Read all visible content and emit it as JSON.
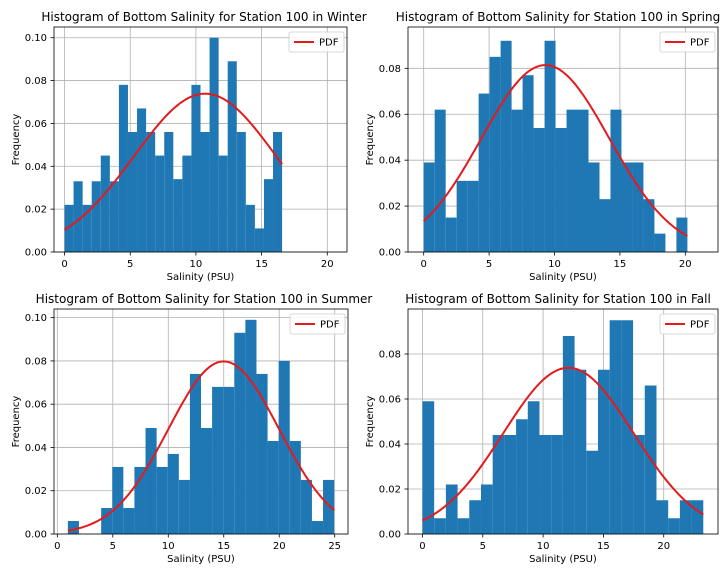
{
  "chart_data": [
    {
      "type": "bar",
      "title": "Histogram of Bottom Salinity for Station 100 in Winter",
      "xlabel": "Salinity (PSU)",
      "ylabel": "Frequency",
      "xlim": [
        -0.8,
        21.5
      ],
      "ylim": [
        0,
        0.105
      ],
      "xticks": [
        0,
        5,
        10,
        15,
        20
      ],
      "yticks": [
        0.0,
        0.02,
        0.04,
        0.06,
        0.08,
        0.1
      ],
      "bin_start": 0.0,
      "bin_width": 0.69,
      "values": [
        0.022,
        0.033,
        0.022,
        0.033,
        0.045,
        0.033,
        0.078,
        0.056,
        0.067,
        0.056,
        0.045,
        0.056,
        0.034,
        0.045,
        0.078,
        0.056,
        0.1,
        0.045,
        0.089,
        0.056,
        0.022,
        0.011,
        0.034,
        0.056
      ],
      "pdf": {
        "name": "PDF",
        "mean": 10.7,
        "std": 5.4,
        "color": "#e41a1c"
      },
      "series_color": "#1f77b4",
      "grid": true,
      "legend": "top-right"
    },
    {
      "type": "bar",
      "title": "Histogram of Bottom Salinity for Station 100 in Spring",
      "xlabel": "Salinity (PSU)",
      "ylabel": "Frequency",
      "xlim": [
        -1.2,
        22.5
      ],
      "ylim": [
        0,
        0.098
      ],
      "xticks": [
        0,
        5,
        10,
        15,
        20
      ],
      "yticks": [
        0.0,
        0.02,
        0.04,
        0.06,
        0.08
      ],
      "bin_start": 0.0,
      "bin_width": 0.84,
      "values": [
        0.039,
        0.062,
        0.015,
        0.031,
        0.031,
        0.069,
        0.085,
        0.092,
        0.062,
        0.077,
        0.054,
        0.092,
        0.054,
        0.062,
        0.062,
        0.039,
        0.023,
        0.062,
        0.039,
        0.039,
        0.023,
        0.008,
        0.0,
        0.015
      ],
      "pdf": {
        "name": "PDF",
        "mean": 9.3,
        "std": 4.9,
        "color": "#e41a1c"
      },
      "series_color": "#1f77b4",
      "grid": true,
      "legend": "top-right"
    },
    {
      "type": "bar",
      "title": "Histogram of Bottom Salinity for Station 100 in Summer",
      "xlabel": "Salinity (PSU)",
      "ylabel": "Frequency",
      "xlim": [
        -0.3,
        26.2
      ],
      "ylim": [
        0,
        0.104
      ],
      "xticks": [
        0,
        5,
        10,
        15,
        20,
        25
      ],
      "yticks": [
        0.0,
        0.02,
        0.04,
        0.06,
        0.08,
        0.1
      ],
      "bin_start": 0.95,
      "bin_width": 1.0,
      "values": [
        0.006,
        0.0,
        0.0,
        0.012,
        0.031,
        0.012,
        0.031,
        0.049,
        0.031,
        0.037,
        0.025,
        0.074,
        0.049,
        0.068,
        0.068,
        0.093,
        0.099,
        0.074,
        0.043,
        0.08,
        0.043,
        0.025,
        0.006,
        0.025
      ],
      "pdf": {
        "name": "PDF",
        "mean": 15.0,
        "std": 5.0,
        "color": "#e41a1c"
      },
      "series_color": "#1f77b4",
      "grid": true,
      "legend": "top-right"
    },
    {
      "type": "bar",
      "title": "Histogram of Bottom Salinity for Station 100 in Fall",
      "xlabel": "Salinity (PSU)",
      "ylabel": "Frequency",
      "xlim": [
        -1.2,
        24.5
      ],
      "ylim": [
        0,
        0.1
      ],
      "xticks": [
        0,
        5,
        10,
        15,
        20
      ],
      "yticks": [
        0.0,
        0.02,
        0.04,
        0.06,
        0.08
      ],
      "bin_start": 0.0,
      "bin_width": 0.97,
      "values": [
        0.059,
        0.007,
        0.022,
        0.007,
        0.015,
        0.022,
        0.044,
        0.044,
        0.051,
        0.059,
        0.044,
        0.044,
        0.088,
        0.073,
        0.037,
        0.073,
        0.095,
        0.095,
        0.044,
        0.066,
        0.015,
        0.007,
        0.015,
        0.015
      ],
      "pdf": {
        "name": "PDF",
        "mean": 12.1,
        "std": 5.4,
        "color": "#e41a1c"
      },
      "series_color": "#1f77b4",
      "grid": true,
      "legend": "top-right"
    }
  ]
}
